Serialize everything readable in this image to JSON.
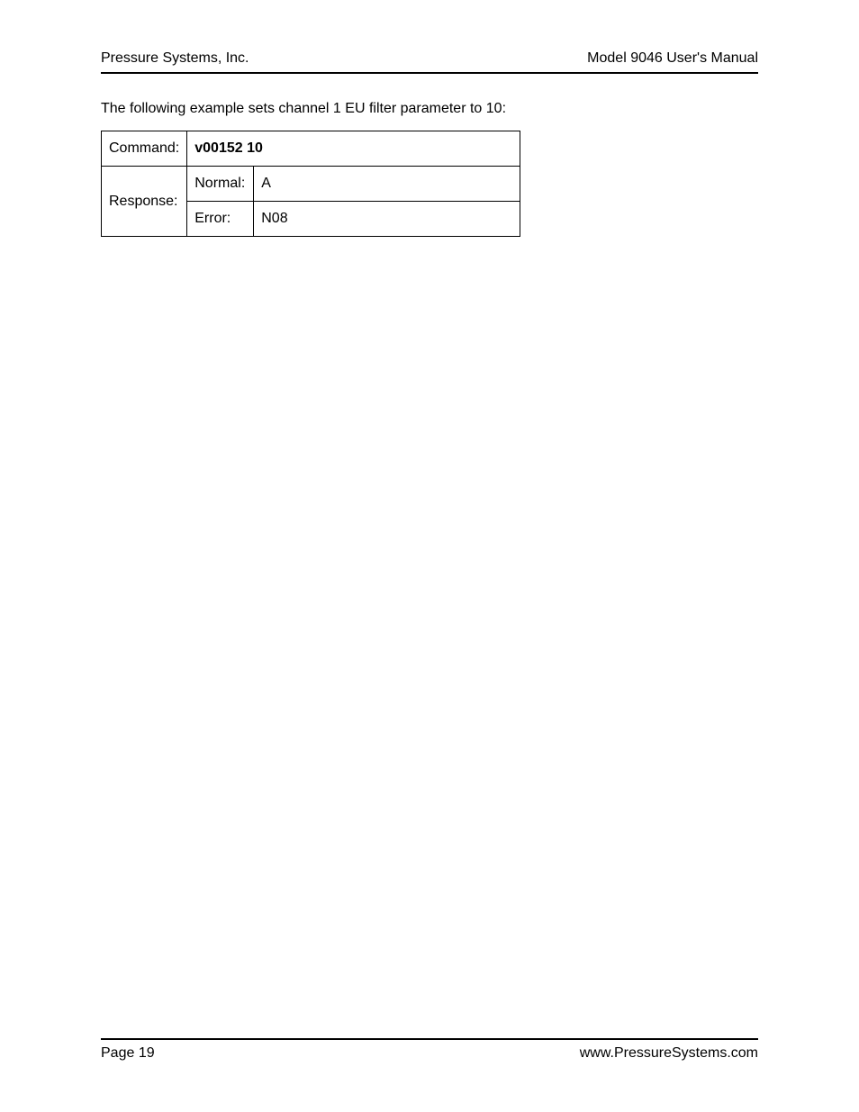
{
  "header": {
    "company": "Pressure Systems, Inc.",
    "manual": "Model 9046 User's Manual"
  },
  "intro": "The following example sets channel 1 EU filter parameter to 10:",
  "table": {
    "command_label": "Command:",
    "command_value": "v00152 10",
    "response_label": "Response:",
    "normal_label": "Normal:",
    "normal_value": "A",
    "error_label": "Error:",
    "error_value": "N08"
  },
  "footer": {
    "page": "Page 19",
    "website": "www.PressureSystems.com"
  }
}
